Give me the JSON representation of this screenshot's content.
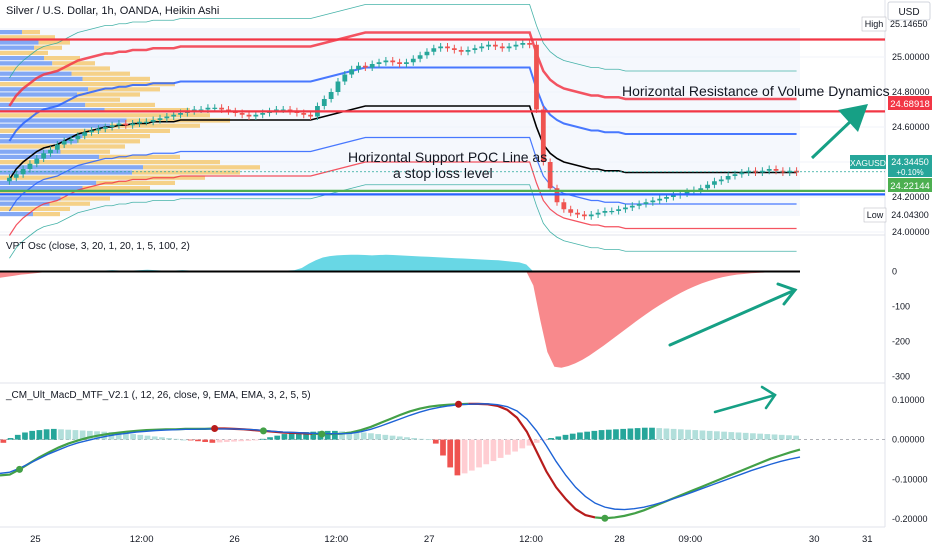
{
  "header": {
    "symbol_title": "Silver / U.S. Dollar, 1h, OANDA, Heikin Ashi",
    "currency": "USD"
  },
  "colors": {
    "up": "#26a69a",
    "down": "#ef5350",
    "poc_green": "#4caf50",
    "support_blue": "#2962ff",
    "resistance_red": "#f23645",
    "accent_arrow": "#16a085",
    "vpt_fill_up": "#4dd0e1",
    "vpt_fill_down": "#f77c80",
    "macd_green": "#43a047",
    "macd_blue": "#1e63d6",
    "macd_red": "#b71c1c"
  },
  "chart_data": [
    {
      "id": "price",
      "type": "candlestick",
      "title": "Silver / U.S. Dollar, 1h, OANDA, Heikin Ashi",
      "ylim": [
        24.0,
        25.2
      ],
      "y_ticks": [
        "25.00000",
        "24.80000",
        "24.60000",
        "24.40000",
        "24.20000",
        "24.00000"
      ],
      "y_tick_values": [
        25.0,
        24.8,
        24.6,
        24.4,
        24.2,
        24.0
      ],
      "x_ticks": [
        "25",
        "12:00",
        "26",
        "12:00",
        "27",
        "12:00",
        "28",
        "09:00",
        "30",
        "31"
      ],
      "x_tick_pos": [
        0.04,
        0.16,
        0.265,
        0.38,
        0.485,
        0.6,
        0.7,
        0.78,
        0.92,
        0.98
      ],
      "price_labels": [
        {
          "name": "High",
          "value": "25.14650",
          "level": 25.1465,
          "kind": "high"
        },
        {
          "name": "",
          "value": "24.68918",
          "level": 24.68918,
          "kind": "resistance"
        },
        {
          "name": "XAGUSD",
          "value": "24.34450",
          "change": "+0.10%",
          "level": 24.3445,
          "kind": "last"
        },
        {
          "name": "",
          "value": "24.22144",
          "level": 24.22144,
          "kind": "support"
        },
        {
          "name": "Low",
          "value": "24.04300",
          "level": 24.043,
          "kind": "low"
        }
      ],
      "annotations": [
        {
          "text": "Horizontal Resistance of Volume Dynamics",
          "kind": "resistance"
        },
        {
          "text": "Horizontal Support POC Line as",
          "kind": "support"
        },
        {
          "text": "a stop loss level",
          "kind": "support"
        }
      ],
      "horizontal_lines": [
        {
          "level": 25.1,
          "color": "#f23645"
        },
        {
          "level": 24.68918,
          "color": "#f23645"
        },
        {
          "level": 24.235,
          "color": "#4caf50"
        },
        {
          "level": 24.215,
          "color": "#2962ff"
        }
      ],
      "candles_close": [
        24.31,
        24.33,
        24.36,
        24.39,
        24.42,
        24.45,
        24.47,
        24.5,
        24.52,
        24.53,
        24.55,
        24.57,
        24.58,
        24.59,
        24.6,
        24.61,
        24.62,
        24.61,
        24.62,
        24.63,
        24.63,
        24.64,
        24.65,
        24.66,
        24.67,
        24.68,
        24.69,
        24.7,
        24.7,
        24.71,
        24.71,
        24.7,
        24.69,
        24.68,
        24.67,
        24.66,
        24.67,
        24.68,
        24.69,
        24.7,
        24.7,
        24.69,
        24.68,
        24.67,
        24.66,
        24.72,
        24.76,
        24.8,
        24.86,
        24.9,
        24.93,
        24.95,
        24.94,
        24.96,
        24.97,
        24.98,
        24.97,
        24.96,
        24.97,
        24.99,
        25.01,
        25.03,
        25.05,
        25.06,
        25.05,
        25.04,
        25.03,
        25.04,
        25.05,
        25.06,
        25.07,
        25.06,
        25.05,
        25.06,
        25.07,
        25.08,
        25.07,
        24.7,
        24.4,
        24.25,
        24.17,
        24.13,
        24.11,
        24.1,
        24.09,
        24.1,
        24.11,
        24.12,
        24.12,
        24.13,
        24.14,
        24.15,
        24.16,
        24.17,
        24.18,
        24.19,
        24.2,
        24.21,
        24.22,
        24.23,
        24.24,
        24.25,
        24.27,
        24.29,
        24.3,
        24.32,
        24.33,
        24.34,
        24.35,
        24.34,
        24.35,
        24.36,
        24.35,
        24.34,
        24.35,
        24.34
      ],
      "series": [
        {
          "name": "",
          "color": "#000000",
          "values": [
            24.3,
            24.36,
            24.4,
            24.43,
            24.46,
            24.48,
            24.49,
            24.5,
            24.52,
            24.54,
            24.56,
            24.57,
            24.58,
            24.59,
            24.6,
            24.6,
            24.61,
            24.61,
            24.62,
            24.62,
            24.62,
            24.63,
            24.63,
            24.63,
            24.63,
            24.64,
            24.64,
            24.64,
            24.64,
            24.64,
            24.64,
            24.64,
            24.64,
            24.64,
            24.64,
            24.64,
            24.64,
            24.64,
            24.64,
            24.64,
            24.64,
            24.64,
            24.64,
            24.64,
            24.64,
            24.65,
            24.66,
            24.67,
            24.68,
            24.69,
            24.7,
            24.71,
            24.72,
            24.72,
            24.72,
            24.72,
            24.72,
            24.72,
            24.72,
            24.72,
            24.72,
            24.72,
            24.72,
            24.72,
            24.72,
            24.72,
            24.72,
            24.72,
            24.72,
            24.72,
            24.72,
            24.72,
            24.72,
            24.72,
            24.72,
            24.72,
            24.72,
            24.6,
            24.5,
            24.45,
            24.42,
            24.4,
            24.39,
            24.38,
            24.37,
            24.36,
            24.36,
            24.35,
            24.35,
            24.35,
            24.34,
            24.34,
            24.34,
            24.34,
            24.34,
            24.34,
            24.34,
            24.34,
            24.34,
            24.34,
            24.34,
            24.34,
            24.34,
            24.34,
            24.34,
            24.34,
            24.34,
            24.34,
            24.34,
            24.34,
            24.34,
            24.34,
            24.34,
            24.34,
            24.34,
            24.34
          ]
        }
      ]
    },
    {
      "id": "vpt",
      "type": "area",
      "title": "VPT Osc (close, 3, 20, 1, 20, 1, 5, 100, 2)",
      "ylim": [
        -310,
        90
      ],
      "y_ticks": [
        "0",
        "-100",
        "-200",
        "-300"
      ],
      "y_tick_values": [
        0,
        -100,
        -200,
        -300
      ],
      "values": [
        -18,
        -15,
        -12,
        -9,
        -7,
        -5,
        -3,
        -2,
        -1,
        0,
        1,
        2,
        2,
        3,
        2,
        3,
        4,
        3,
        2,
        3,
        4,
        5,
        4,
        3,
        2,
        3,
        4,
        3,
        2,
        1,
        2,
        3,
        2,
        1,
        0,
        1,
        2,
        3,
        2,
        1,
        2,
        3,
        4,
        10,
        22,
        32,
        40,
        44,
        46,
        47,
        48,
        48,
        47,
        46,
        47,
        48,
        47,
        46,
        45,
        44,
        43,
        42,
        41,
        40,
        39,
        38,
        37,
        36,
        35,
        34,
        33,
        32,
        30,
        28,
        26,
        20,
        -40,
        -140,
        -230,
        -272,
        -275,
        -270,
        -262,
        -252,
        -240,
        -226,
        -212,
        -197,
        -182,
        -167,
        -152,
        -137,
        -123,
        -109,
        -96,
        -84,
        -72,
        -61,
        -51,
        -42,
        -34,
        -27,
        -21,
        -16,
        -12,
        -9,
        -7,
        -5,
        -4,
        -3,
        -2,
        -2,
        -1,
        -1,
        0
      ]
    },
    {
      "id": "macd",
      "type": "bar",
      "title": "_CM_Ult_MacD_MTF_V2.1 (, 12, 26, close, 9, EMA, EMA, 3, 2, 5, 5)",
      "ylim": [
        -0.215,
        0.13
      ],
      "y_ticks": [
        "0.10000",
        "0.00000",
        "-0.10000",
        "-0.20000"
      ],
      "y_tick_values": [
        0.1,
        0.0,
        -0.1,
        -0.2
      ],
      "values": [
        -0.008,
        0.004,
        0.012,
        0.018,
        0.022,
        0.024,
        0.026,
        0.027,
        0.026,
        0.025,
        0.024,
        0.023,
        0.022,
        0.021,
        0.02,
        0.019,
        0.018,
        0.016,
        0.014,
        0.012,
        0.01,
        0.008,
        0.006,
        0.004,
        0.002,
        0.0,
        -0.002,
        -0.004,
        -0.006,
        -0.008,
        -0.007,
        -0.006,
        -0.005,
        -0.004,
        -0.003,
        -0.002,
        0.002,
        0.006,
        0.01,
        0.014,
        0.017,
        0.018,
        0.019,
        0.02,
        0.021,
        0.022,
        0.022,
        0.021,
        0.02,
        0.019,
        0.018,
        0.016,
        0.014,
        0.012,
        0.01,
        0.008,
        0.006,
        0.004,
        0.002,
        0.001,
        -0.01,
        -0.04,
        -0.07,
        -0.09,
        -0.085,
        -0.078,
        -0.07,
        -0.062,
        -0.054,
        -0.046,
        -0.038,
        -0.03,
        -0.022,
        -0.015,
        -0.008,
        -0.002,
        0.004,
        0.008,
        0.012,
        0.015,
        0.018,
        0.02,
        0.022,
        0.024,
        0.025,
        0.026,
        0.027,
        0.028,
        0.029,
        0.03,
        0.03,
        0.029,
        0.028,
        0.027,
        0.026,
        0.025,
        0.024,
        0.023,
        0.022,
        0.021,
        0.02,
        0.019,
        0.018,
        0.017,
        0.016,
        0.015,
        0.014,
        0.013,
        0.012,
        0.011,
        0.01
      ],
      "series": [
        {
          "name": "",
          "color": "#43a047",
          "values": [
            -0.09,
            -0.088,
            -0.075,
            -0.06,
            -0.045,
            -0.032,
            -0.02,
            -0.01,
            -0.002,
            0.005,
            0.01,
            0.014,
            0.017,
            0.02,
            0.022,
            0.024,
            0.025,
            0.026,
            0.026,
            0.027,
            0.027,
            0.027,
            0.028,
            0.028,
            0.027,
            0.026,
            0.024,
            0.022,
            0.02,
            0.018,
            0.017,
            0.016,
            0.015,
            0.014,
            0.014,
            0.015,
            0.018,
            0.024,
            0.032,
            0.042,
            0.052,
            0.062,
            0.071,
            0.078,
            0.083,
            0.086,
            0.088,
            0.089,
            0.09,
            0.09,
            0.089,
            0.085,
            0.075,
            0.055,
            0.02,
            -0.03,
            -0.08,
            -0.12,
            -0.15,
            -0.175,
            -0.19,
            -0.196,
            -0.198,
            -0.196,
            -0.192,
            -0.186,
            -0.178,
            -0.168,
            -0.158,
            -0.148,
            -0.138,
            -0.128,
            -0.118,
            -0.108,
            -0.098,
            -0.088,
            -0.078,
            -0.068,
            -0.058,
            -0.048,
            -0.04,
            -0.032,
            -0.025
          ]
        },
        {
          "name": "",
          "color": "#1e63d6",
          "values": [
            -0.085,
            -0.082,
            -0.072,
            -0.06,
            -0.048,
            -0.036,
            -0.026,
            -0.016,
            -0.008,
            -0.002,
            0.004,
            0.009,
            0.013,
            0.016,
            0.019,
            0.021,
            0.023,
            0.024,
            0.025,
            0.026,
            0.026,
            0.027,
            0.027,
            0.027,
            0.027,
            0.026,
            0.025,
            0.023,
            0.021,
            0.019,
            0.018,
            0.017,
            0.016,
            0.015,
            0.015,
            0.015,
            0.016,
            0.02,
            0.026,
            0.034,
            0.043,
            0.052,
            0.061,
            0.069,
            0.076,
            0.081,
            0.085,
            0.088,
            0.089,
            0.09,
            0.09,
            0.088,
            0.083,
            0.072,
            0.052,
            0.022,
            -0.015,
            -0.055,
            -0.09,
            -0.12,
            -0.143,
            -0.16,
            -0.17,
            -0.175,
            -0.176,
            -0.174,
            -0.17,
            -0.164,
            -0.157,
            -0.149,
            -0.141,
            -0.132,
            -0.123,
            -0.114,
            -0.105,
            -0.096,
            -0.087,
            -0.078,
            -0.07,
            -0.062,
            -0.055,
            -0.049,
            -0.044
          ]
        }
      ]
    }
  ]
}
